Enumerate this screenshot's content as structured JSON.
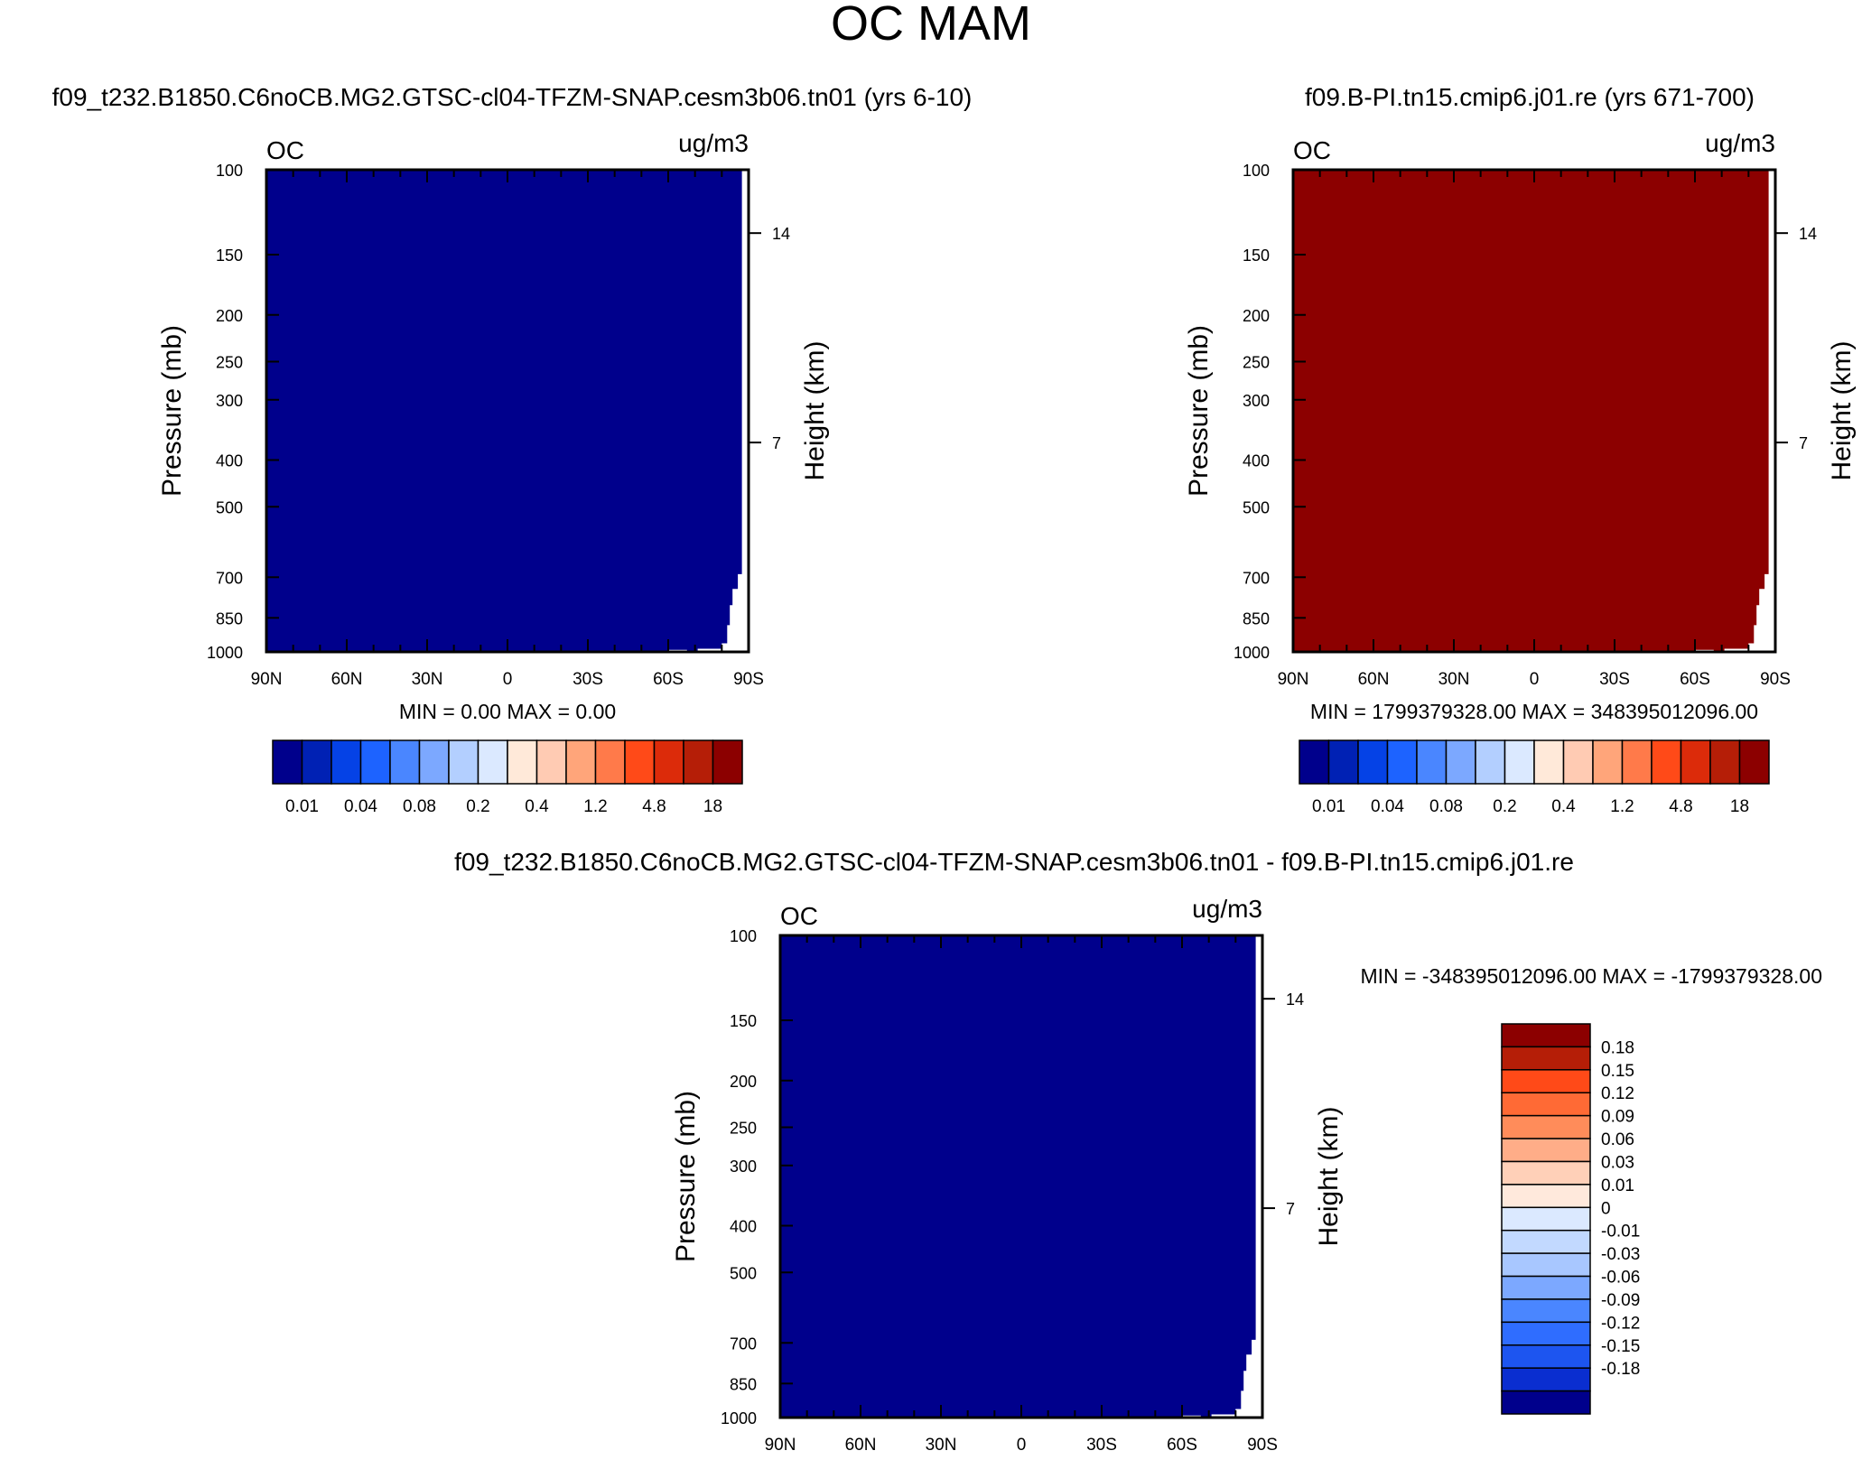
{
  "figure_title": "OC MAM",
  "chart_data": [
    {
      "type": "heatmap",
      "id": "top-left",
      "title": "f09_t232.B1850.C6noCB.MG2.GTSC-cl04-TFZM-SNAP.cesm3b06.tn01 (yrs 6-10)",
      "var_label": "OC",
      "units": "ug/m3",
      "ylabel": "Pressure (mb)",
      "y2label": "Height (km)",
      "x_ticks": [
        "90N",
        "60N",
        "30N",
        "0",
        "30S",
        "60S",
        "90S"
      ],
      "xlim": [
        90,
        -90
      ],
      "ylim": [
        1000,
        100
      ],
      "y_scale": "log",
      "y_ticks": [
        100,
        150,
        200,
        250,
        300,
        400,
        500,
        700,
        850,
        1000
      ],
      "y2_ticks": [
        14,
        7
      ],
      "fill_color": "#00008c",
      "minmax_text": "MIN =    0.00   MAX =    0.00",
      "colorbar": {
        "orientation": "horizontal",
        "colors": [
          "#00008c",
          "#0021b4",
          "#0542e6",
          "#1d63ff",
          "#4a86ff",
          "#7ca8ff",
          "#b3cfff",
          "#dbe9ff",
          "#ffe9d9",
          "#ffcbb3",
          "#ffa57a",
          "#ff7a4a",
          "#ff4a18",
          "#dc2b0a",
          "#b51e07",
          "#8c0000"
        ],
        "labels": [
          "0.01",
          "0.04",
          "0.08",
          "0.2",
          "0.4",
          "1.2",
          "4.8",
          "18"
        ]
      }
    },
    {
      "type": "heatmap",
      "id": "top-right",
      "title": "f09.B-PI.tn15.cmip6.j01.re (yrs 671-700)",
      "var_label": "OC",
      "units": "ug/m3",
      "ylabel": "Pressure (mb)",
      "y2label": "Height (km)",
      "x_ticks": [
        "90N",
        "60N",
        "30N",
        "0",
        "30S",
        "60S",
        "90S"
      ],
      "xlim": [
        90,
        -90
      ],
      "ylim": [
        1000,
        100
      ],
      "y_scale": "log",
      "y_ticks": [
        100,
        150,
        200,
        250,
        300,
        400,
        500,
        700,
        850,
        1000
      ],
      "y2_ticks": [
        14,
        7
      ],
      "fill_color": "#8c0000",
      "minmax_text": "MIN = 1799379328.00   MAX = 348395012096.00",
      "colorbar": {
        "orientation": "horizontal",
        "colors": [
          "#00008c",
          "#0021b4",
          "#0542e6",
          "#1d63ff",
          "#4a86ff",
          "#7ca8ff",
          "#b3cfff",
          "#dbe9ff",
          "#ffe9d9",
          "#ffcbb3",
          "#ffa57a",
          "#ff7a4a",
          "#ff4a18",
          "#dc2b0a",
          "#b51e07",
          "#8c0000"
        ],
        "labels": [
          "0.01",
          "0.04",
          "0.08",
          "0.2",
          "0.4",
          "1.2",
          "4.8",
          "18"
        ]
      }
    },
    {
      "type": "heatmap",
      "id": "bottom-diff",
      "title": "f09_t232.B1850.C6noCB.MG2.GTSC-cl04-TFZM-SNAP.cesm3b06.tn01 - f09.B-PI.tn15.cmip6.j01.re",
      "var_label": "OC",
      "units": "ug/m3",
      "ylabel": "Pressure (mb)",
      "y2label": "Height (km)",
      "x_ticks": [
        "90N",
        "60N",
        "30N",
        "0",
        "30S",
        "60S",
        "90S"
      ],
      "xlim": [
        90,
        -90
      ],
      "ylim": [
        1000,
        100
      ],
      "y_scale": "log",
      "y_ticks": [
        100,
        150,
        200,
        250,
        300,
        400,
        500,
        700,
        850,
        1000
      ],
      "y2_ticks": [
        14,
        7
      ],
      "fill_color": "#00008c",
      "minmax_text": "MIN = -348395012096.00  MAX = -1799379328.00",
      "colorbar": {
        "orientation": "vertical",
        "colors": [
          "#8c0000",
          "#b51e07",
          "#ff4a18",
          "#ff6a35",
          "#ff8c5a",
          "#ffad88",
          "#ffd0b8",
          "#ffe9dc",
          "#dbe9ff",
          "#c2d9ff",
          "#a8c7ff",
          "#7ca8ff",
          "#4a86ff",
          "#2f6dff",
          "#1d55f0",
          "#0a2ed0",
          "#00008c"
        ],
        "labels": [
          "0.18",
          "0.15",
          "0.12",
          "0.09",
          "0.06",
          "0.03",
          "0.01",
          "0",
          "-0.01",
          "-0.03",
          "-0.06",
          "-0.09",
          "-0.12",
          "-0.15",
          "-0.18"
        ]
      }
    }
  ]
}
